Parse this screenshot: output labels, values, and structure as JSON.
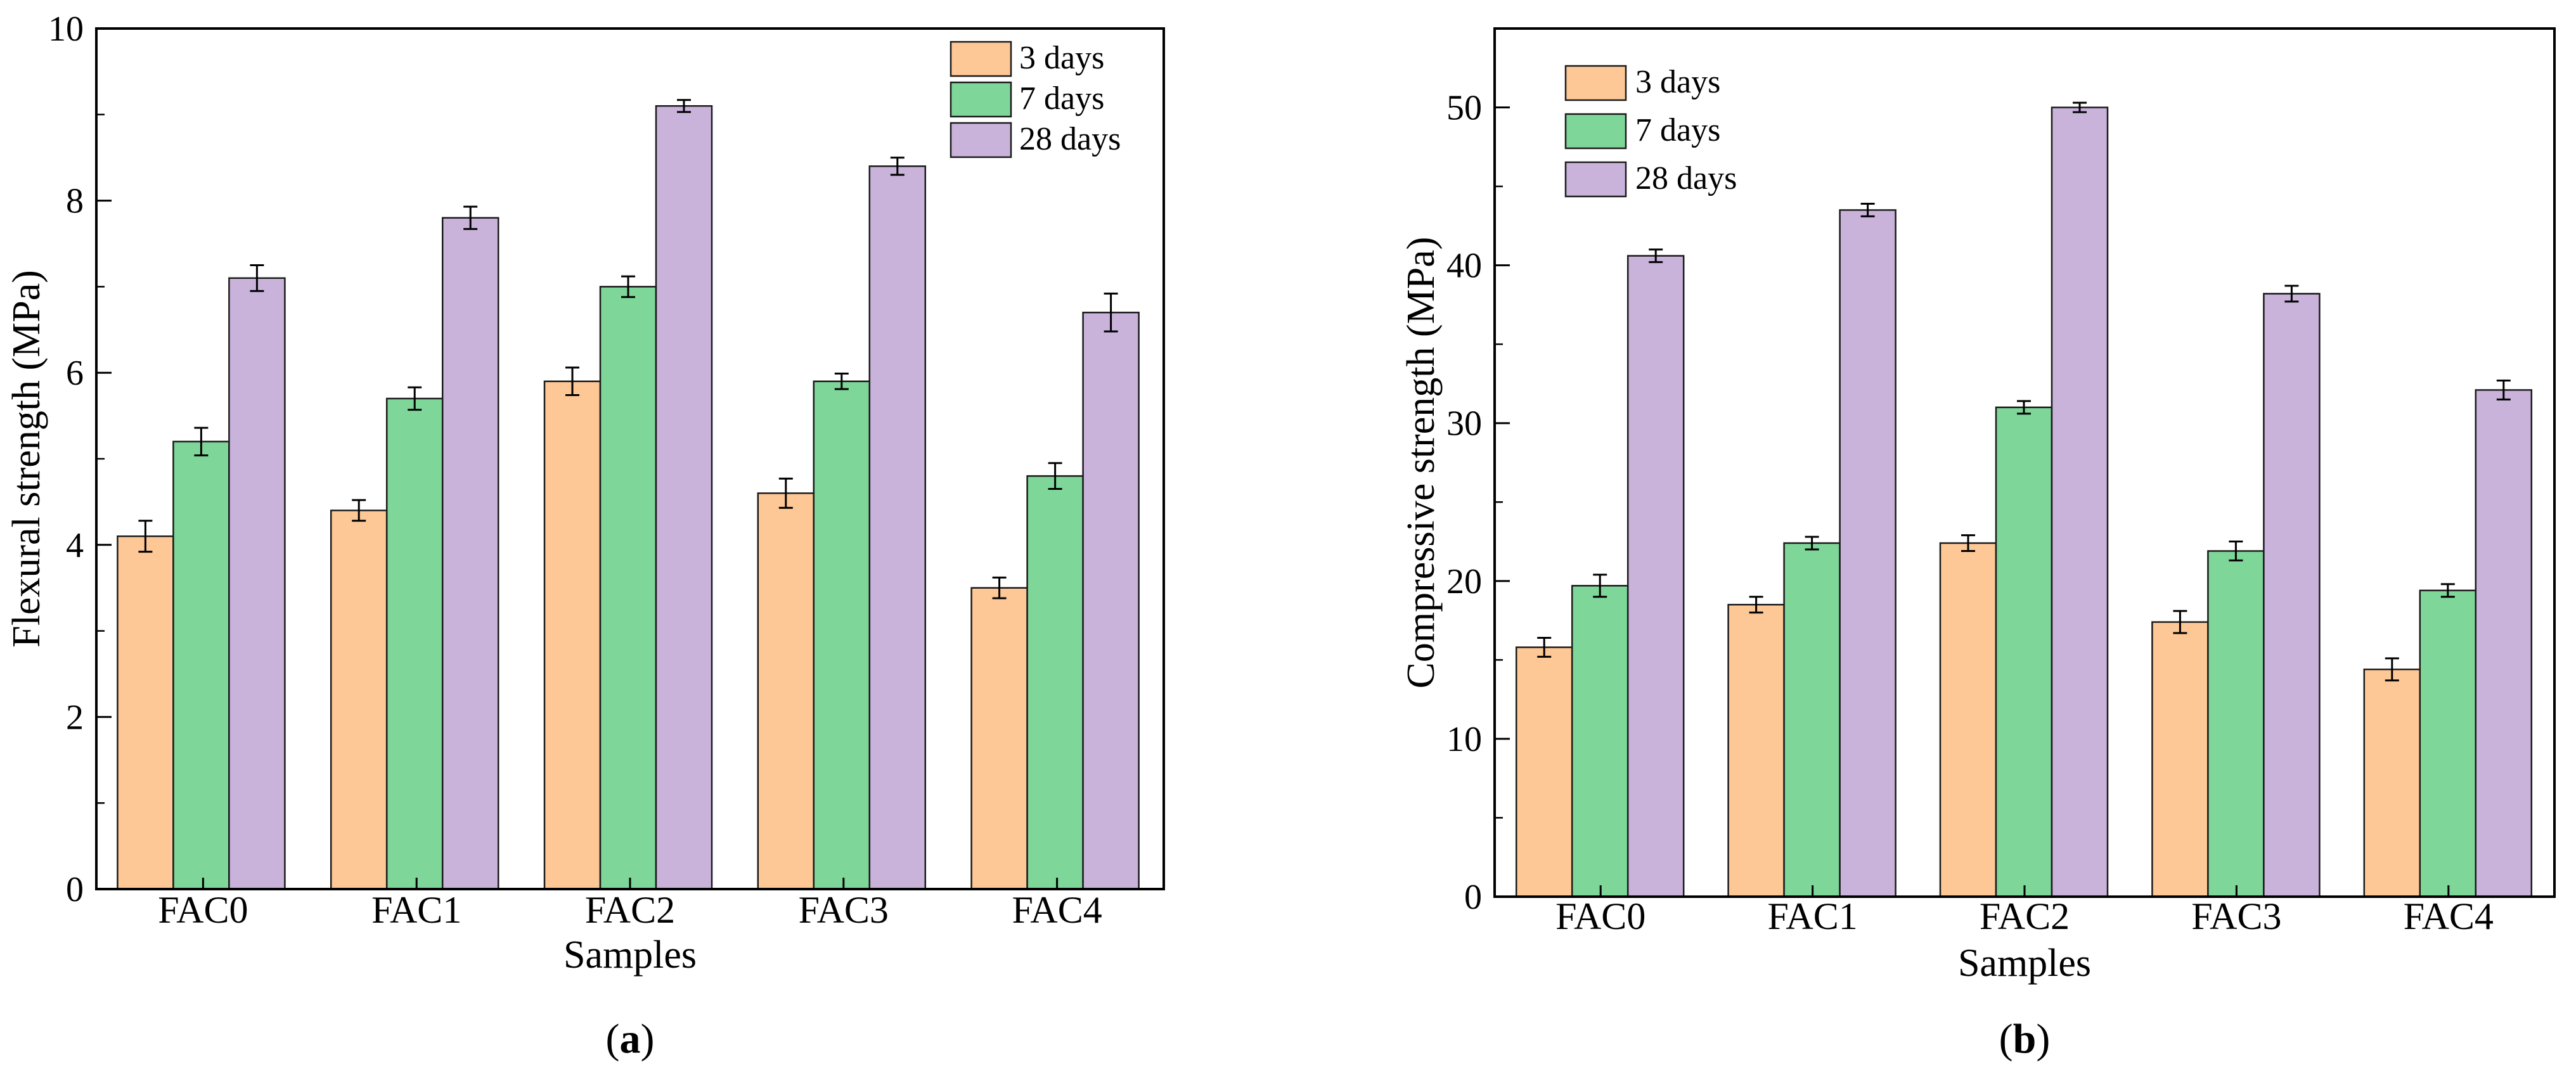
{
  "colors": {
    "3 days": "#FDC796",
    "7 days": "#7ED699",
    "28 days": "#C9B3DB",
    "edge": "#1a1a1a"
  },
  "chart_data": [
    {
      "type": "bar",
      "panel_id": "a",
      "panel_label": {
        "open": "(",
        "letter": "a",
        "close": ")"
      },
      "categories": [
        "FAC0",
        "FAC1",
        "FAC2",
        "FAC3",
        "FAC4"
      ],
      "series": [
        {
          "name": "3 days",
          "values": [
            4.1,
            4.4,
            5.9,
            4.6,
            3.5
          ],
          "errors": [
            0.18,
            0.12,
            0.16,
            0.17,
            0.12
          ]
        },
        {
          "name": "7 days",
          "values": [
            5.2,
            5.7,
            7.0,
            5.9,
            4.8
          ],
          "errors": [
            0.16,
            0.13,
            0.12,
            0.09,
            0.15
          ]
        },
        {
          "name": "28 days",
          "values": [
            7.1,
            7.8,
            9.1,
            8.4,
            6.7
          ],
          "errors": [
            0.15,
            0.13,
            0.07,
            0.1,
            0.22
          ]
        }
      ],
      "xlabel": "Samples",
      "ylabel": "Flexural strength (MPa)",
      "ylim": [
        0,
        10
      ],
      "yticks": [
        0,
        2,
        4,
        6,
        8,
        10
      ],
      "legend_position": "top-right",
      "grid": false
    },
    {
      "type": "bar",
      "panel_id": "b",
      "panel_label": {
        "open": "(",
        "letter": "b",
        "close": ")"
      },
      "categories": [
        "FAC0",
        "FAC1",
        "FAC2",
        "FAC3",
        "FAC4"
      ],
      "series": [
        {
          "name": "3 days",
          "values": [
            15.8,
            18.5,
            22.4,
            17.4,
            14.4
          ],
          "errors": [
            0.6,
            0.5,
            0.5,
            0.7,
            0.7
          ]
        },
        {
          "name": "7 days",
          "values": [
            19.7,
            22.4,
            31.0,
            21.9,
            19.4
          ],
          "errors": [
            0.7,
            0.4,
            0.4,
            0.6,
            0.4
          ]
        },
        {
          "name": "28 days",
          "values": [
            40.6,
            43.5,
            50.0,
            38.2,
            32.1
          ],
          "errors": [
            0.4,
            0.4,
            0.3,
            0.5,
            0.6
          ]
        }
      ],
      "xlabel": "Samples",
      "ylabel": "Compressive strength (MPa)",
      "ylim": [
        0,
        55
      ],
      "yticks": [
        0,
        10,
        20,
        30,
        40,
        50
      ],
      "legend_position": "top-left",
      "grid": false
    }
  ]
}
